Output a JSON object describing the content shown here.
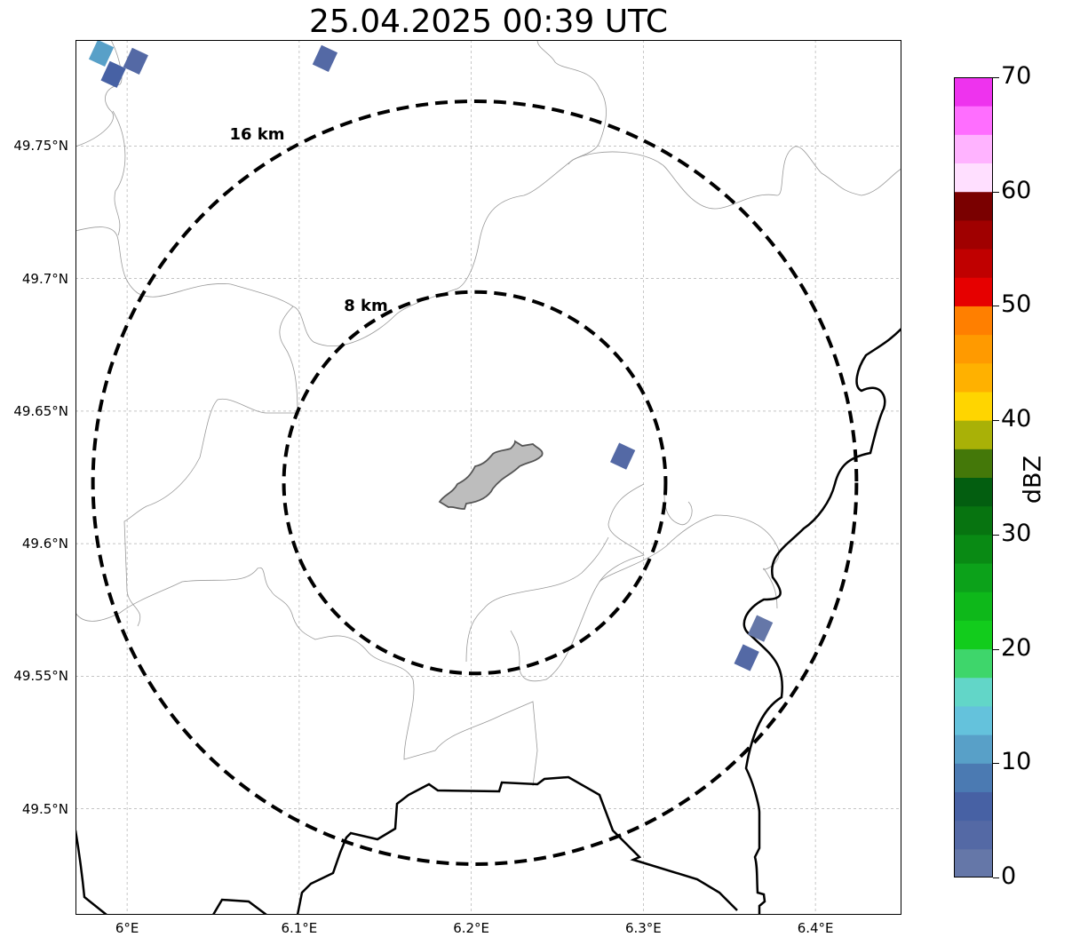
{
  "title": "25.04.2025 00:39 UTC",
  "map": {
    "extent": {
      "lon_min": 5.97,
      "lon_max": 6.45,
      "lat_min": 49.46,
      "lat_max": 49.79
    },
    "center": {
      "lon": 6.202,
      "lat": 49.623
    },
    "rings": [
      {
        "label": "16 km",
        "radius_km": 16
      },
      {
        "label": "8 km",
        "radius_km": 8
      }
    ],
    "lat_ticks": [
      {
        "value": 49.75,
        "label": "49.75°N"
      },
      {
        "value": 49.7,
        "label": "49.7°N"
      },
      {
        "value": 49.65,
        "label": "49.65°N"
      },
      {
        "value": 49.6,
        "label": "49.6°N"
      },
      {
        "value": 49.55,
        "label": "49.55°N"
      },
      {
        "value": 49.5,
        "label": "49.5°N"
      }
    ],
    "lon_ticks": [
      {
        "value": 6.0,
        "label": "6°E"
      },
      {
        "value": 6.1,
        "label": "6.1°E"
      },
      {
        "value": 6.2,
        "label": "6.2°E"
      },
      {
        "value": 6.3,
        "label": "6.3°E"
      },
      {
        "value": 6.4,
        "label": "6.4°E"
      }
    ],
    "reflectivity_cells": [
      {
        "lon": 5.985,
        "lat": 49.785,
        "dbz": 12
      },
      {
        "lon": 5.992,
        "lat": 49.777,
        "dbz": 6
      },
      {
        "lon": 6.005,
        "lat": 49.782,
        "dbz": 4
      },
      {
        "lon": 6.115,
        "lat": 49.783,
        "dbz": 3
      },
      {
        "lon": 6.288,
        "lat": 49.633,
        "dbz": 3
      },
      {
        "lon": 6.36,
        "lat": 49.557,
        "dbz": 3
      },
      {
        "lon": 6.368,
        "lat": 49.568,
        "dbz": 2
      }
    ]
  },
  "colorbar": {
    "unit": "dBZ",
    "min": 0,
    "max": 70,
    "tick_labels": [
      {
        "value": 0,
        "label": "0"
      },
      {
        "value": 10,
        "label": "10"
      },
      {
        "value": 20,
        "label": "20"
      },
      {
        "value": 30,
        "label": "30"
      },
      {
        "value": 40,
        "label": "40"
      },
      {
        "value": 50,
        "label": "50"
      },
      {
        "value": 60,
        "label": "60"
      },
      {
        "value": 70,
        "label": "70"
      }
    ],
    "colors": [
      "#6577a8",
      "#5469a5",
      "#4761a4",
      "#4b7ab2",
      "#58a0c8",
      "#64c2dc",
      "#62d6c8",
      "#3ed66b",
      "#12cc1c",
      "#0eb81a",
      "#0ca21a",
      "#098a14",
      "#077410",
      "#035e10",
      "#447809",
      "#a9b107",
      "#ffd500",
      "#ffb100",
      "#ff9a00",
      "#ff7f00",
      "#e60000",
      "#c00000",
      "#a00000",
      "#7a0000",
      "#ffdfff",
      "#ffb3ff",
      "#ff6eff",
      "#ee33ee"
    ]
  }
}
